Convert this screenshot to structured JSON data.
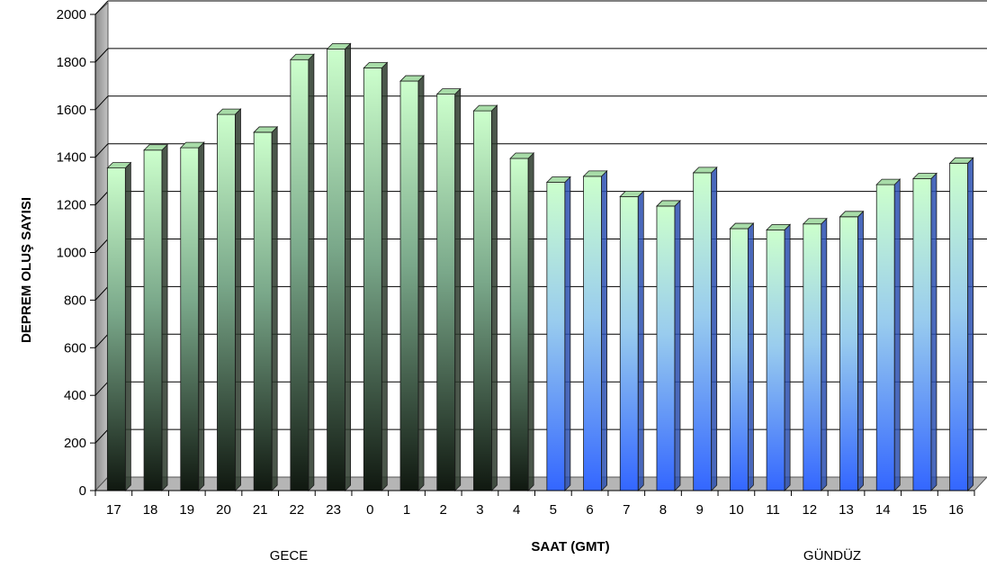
{
  "chart_data": {
    "type": "bar",
    "xlabel": "SAAT (GMT)",
    "ylabel": "DEPREM OLUŞ SAYISI",
    "ylim": [
      0,
      2000
    ],
    "yticks": [
      0,
      200,
      400,
      600,
      800,
      1000,
      1200,
      1400,
      1600,
      1800,
      2000
    ],
    "grid": true,
    "categories": [
      "17",
      "18",
      "19",
      "20",
      "21",
      "22",
      "23",
      "0",
      "1",
      "2",
      "3",
      "4",
      "5",
      "6",
      "7",
      "8",
      "9",
      "10",
      "11",
      "12",
      "13",
      "14",
      "15",
      "16"
    ],
    "values": [
      1355,
      1430,
      1440,
      1580,
      1505,
      1810,
      1855,
      1775,
      1720,
      1665,
      1595,
      1395,
      1295,
      1320,
      1235,
      1195,
      1335,
      1100,
      1095,
      1120,
      1150,
      1285,
      1310,
      1375
    ],
    "groups": [
      {
        "label": "GECE",
        "categories": [
          "17",
          "18",
          "19",
          "20",
          "21",
          "22",
          "23",
          "0",
          "1",
          "2",
          "3",
          "4"
        ],
        "color_top": "#ccffcc",
        "color_bottom": "#101810"
      },
      {
        "label": "GÜNDÜZ",
        "categories": [
          "5",
          "6",
          "7",
          "8",
          "9",
          "10",
          "11",
          "12",
          "13",
          "14",
          "15",
          "16"
        ],
        "color_top": "#ccffcc",
        "color_bottom": "#3366ff"
      }
    ]
  }
}
